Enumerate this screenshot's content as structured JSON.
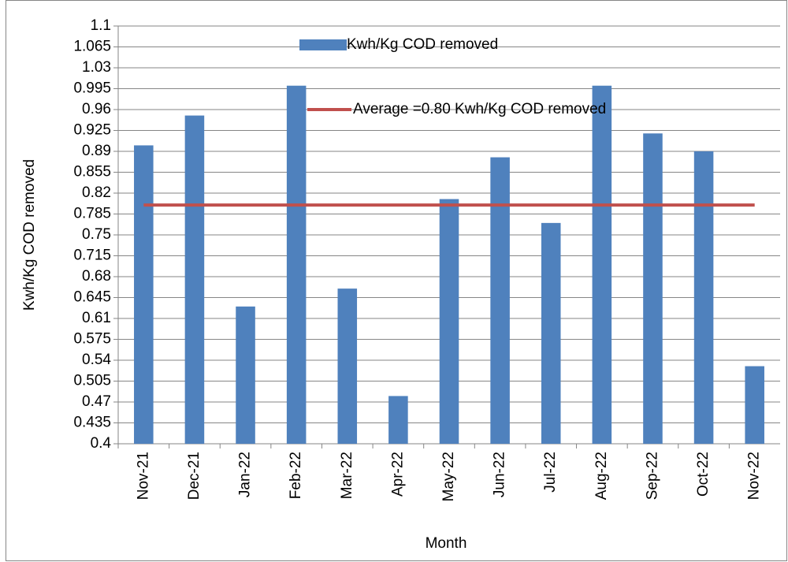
{
  "chart_data": {
    "type": "bar",
    "y_label": "Kwh/Kg COD removed",
    "x_label": "Month",
    "categories": [
      "Nov-21",
      "Dec-21",
      "Jan-22",
      "Feb-22",
      "Mar-22",
      "Apr-22",
      "May-22",
      "Jun-22",
      "Jul-22",
      "Aug-22",
      "Sep-22",
      "Oct-22",
      "Nov-22"
    ],
    "series": [
      {
        "name": "Kwh/Kg COD removed",
        "type": "bar",
        "color": "#4f81bd",
        "values": [
          0.9,
          0.95,
          0.63,
          1.0,
          0.66,
          0.48,
          0.81,
          0.88,
          0.77,
          1.0,
          0.92,
          0.89,
          0.53
        ]
      },
      {
        "name": "Average =0.80 Kwh/Kg COD removed",
        "type": "line",
        "color": "#c0504d",
        "values": [
          0.8,
          0.8,
          0.8,
          0.8,
          0.8,
          0.8,
          0.8,
          0.8,
          0.8,
          0.8,
          0.8,
          0.8,
          0.8
        ]
      }
    ],
    "ylim": [
      0.4,
      1.1
    ],
    "yticks": [
      0.4,
      0.435,
      0.47,
      0.505,
      0.54,
      0.575,
      0.61,
      0.645,
      0.68,
      0.715,
      0.75,
      0.785,
      0.82,
      0.855,
      0.89,
      0.925,
      0.96,
      0.995,
      1.03,
      1.065,
      1.1
    ],
    "grid": true
  }
}
